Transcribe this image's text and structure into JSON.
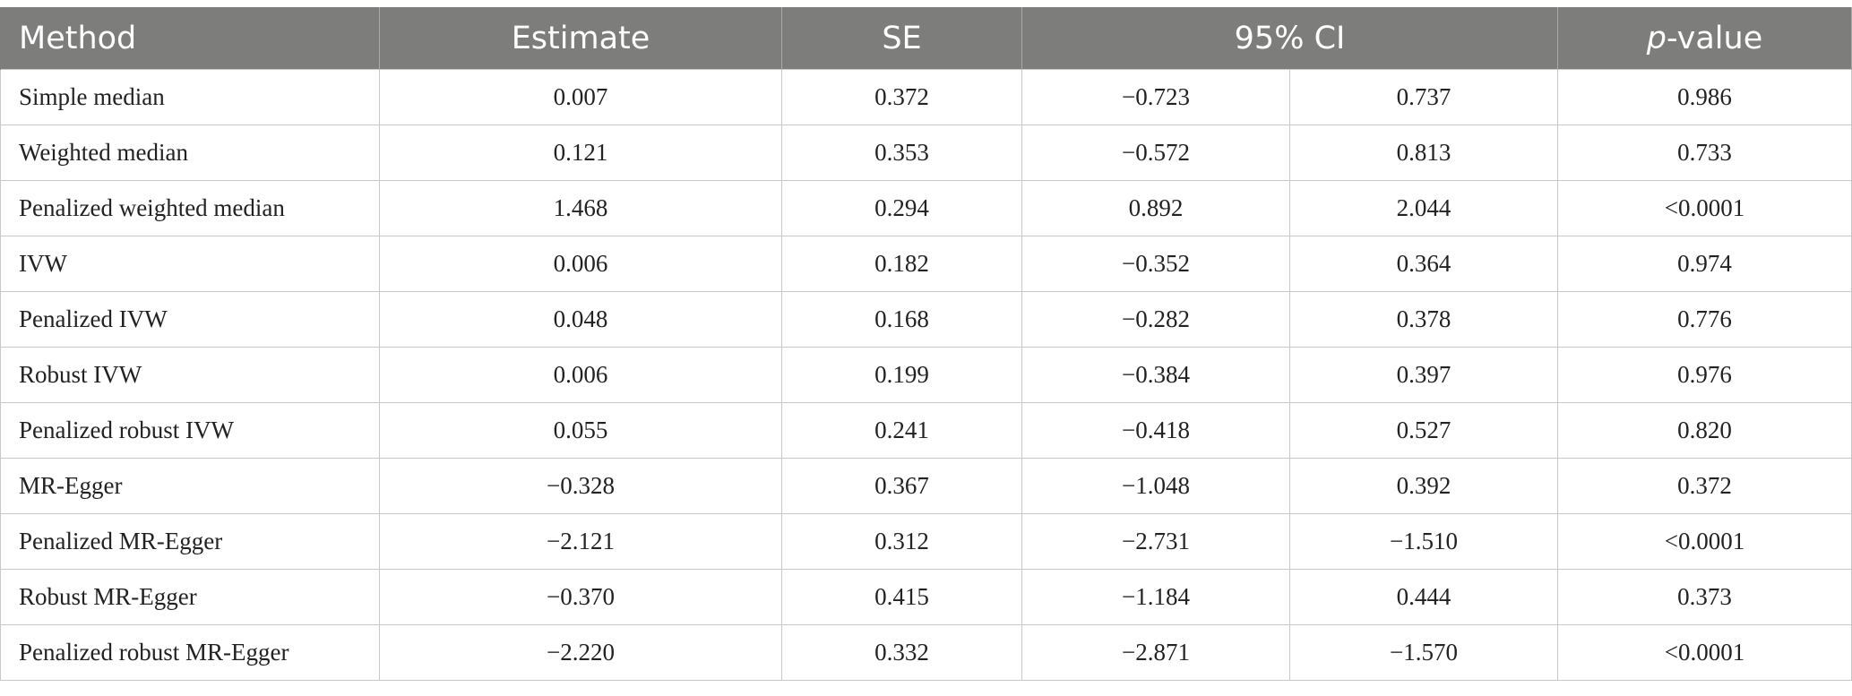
{
  "header": {
    "method": "Method",
    "estimate": "Estimate",
    "se": "SE",
    "ci": "95% CI",
    "p_italic": "p",
    "p_rest": "-value"
  },
  "rows": [
    {
      "method": "Simple median",
      "estimate": "0.007",
      "se": "0.372",
      "ci_low": "−0.723",
      "ci_high": "0.737",
      "p": "0.986"
    },
    {
      "method": "Weighted median",
      "estimate": "0.121",
      "se": "0.353",
      "ci_low": "−0.572",
      "ci_high": "0.813",
      "p": "0.733"
    },
    {
      "method": "Penalized weighted median",
      "estimate": "1.468",
      "se": "0.294",
      "ci_low": "0.892",
      "ci_high": "2.044",
      "p": "<0.0001"
    },
    {
      "method": "IVW",
      "estimate": "0.006",
      "se": "0.182",
      "ci_low": "−0.352",
      "ci_high": "0.364",
      "p": "0.974"
    },
    {
      "method": "Penalized IVW",
      "estimate": "0.048",
      "se": "0.168",
      "ci_low": "−0.282",
      "ci_high": "0.378",
      "p": "0.776"
    },
    {
      "method": "Robust IVW",
      "estimate": "0.006",
      "se": "0.199",
      "ci_low": "−0.384",
      "ci_high": "0.397",
      "p": "0.976"
    },
    {
      "method": "Penalized robust IVW",
      "estimate": "0.055",
      "se": "0.241",
      "ci_low": "−0.418",
      "ci_high": "0.527",
      "p": "0.820"
    },
    {
      "method": "MR-Egger",
      "estimate": "−0.328",
      "se": "0.367",
      "ci_low": "−1.048",
      "ci_high": "0.392",
      "p": "0.372"
    },
    {
      "method": "Penalized MR-Egger",
      "estimate": "−2.121",
      "se": "0.312",
      "ci_low": "−2.731",
      "ci_high": "−1.510",
      "p": "<0.0001"
    },
    {
      "method": "Robust MR-Egger",
      "estimate": "−0.370",
      "se": "0.415",
      "ci_low": "−1.184",
      "ci_high": "0.444",
      "p": "0.373"
    },
    {
      "method": "Penalized robust MR-Egger",
      "estimate": "−2.220",
      "se": "0.332",
      "ci_low": "−2.871",
      "ci_high": "−1.570",
      "p": "<0.0001"
    }
  ],
  "colors": {
    "header_bg": "#7d7e7c",
    "header_text": "#ffffff",
    "grid": "#c8c8c8"
  }
}
